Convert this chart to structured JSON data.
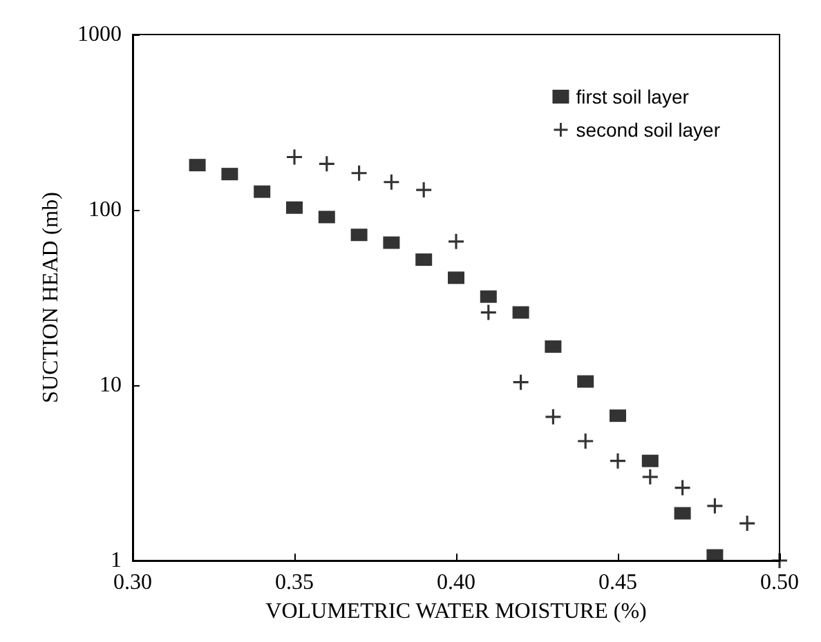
{
  "chart_data": {
    "type": "scatter",
    "xlabel": "VOLUMETRIC WATER MOISTURE (%)",
    "ylabel": "SUCTION HEAD (mb)",
    "log": "y",
    "xlim": [
      0.3,
      0.5
    ],
    "xticks": [
      {
        "value": 0.3,
        "label": "0.30"
      },
      {
        "value": 0.35,
        "label": "0.35"
      },
      {
        "value": 0.4,
        "label": "0.40"
      },
      {
        "value": 0.45,
        "label": "0.45"
      },
      {
        "value": 0.5,
        "label": "0.50"
      }
    ],
    "ylim": [
      1,
      1000
    ],
    "yticks": [
      1,
      10,
      100,
      1000
    ],
    "grid": false,
    "legend": "top right",
    "series": [
      {
        "name": "first soil layer",
        "color": "#000000",
        "marker": "square",
        "x": [
          0.32,
          0.33,
          0.34,
          0.35,
          0.36,
          0.37,
          0.38,
          0.39,
          0.4,
          0.41,
          0.42,
          0.43,
          0.44,
          0.45,
          0.46,
          0.47,
          0.48
        ],
        "values": [
          180,
          160,
          127,
          103,
          91,
          72,
          65,
          52,
          41,
          32,
          26,
          16.6,
          10.5,
          6.7,
          3.7,
          1.86,
          1.07
        ]
      },
      {
        "name": "second soil layer",
        "color": "#000000",
        "marker": "cross",
        "x": [
          0.35,
          0.36,
          0.37,
          0.38,
          0.39,
          0.4,
          0.41,
          0.42,
          0.43,
          0.44,
          0.45,
          0.46,
          0.47,
          0.48,
          0.49,
          0.5
        ],
        "values": [
          200,
          183,
          162,
          144,
          130,
          66,
          26,
          10.4,
          6.6,
          4.8,
          3.7,
          3.0,
          2.6,
          2.05,
          1.63,
          1.0
        ]
      }
    ]
  }
}
